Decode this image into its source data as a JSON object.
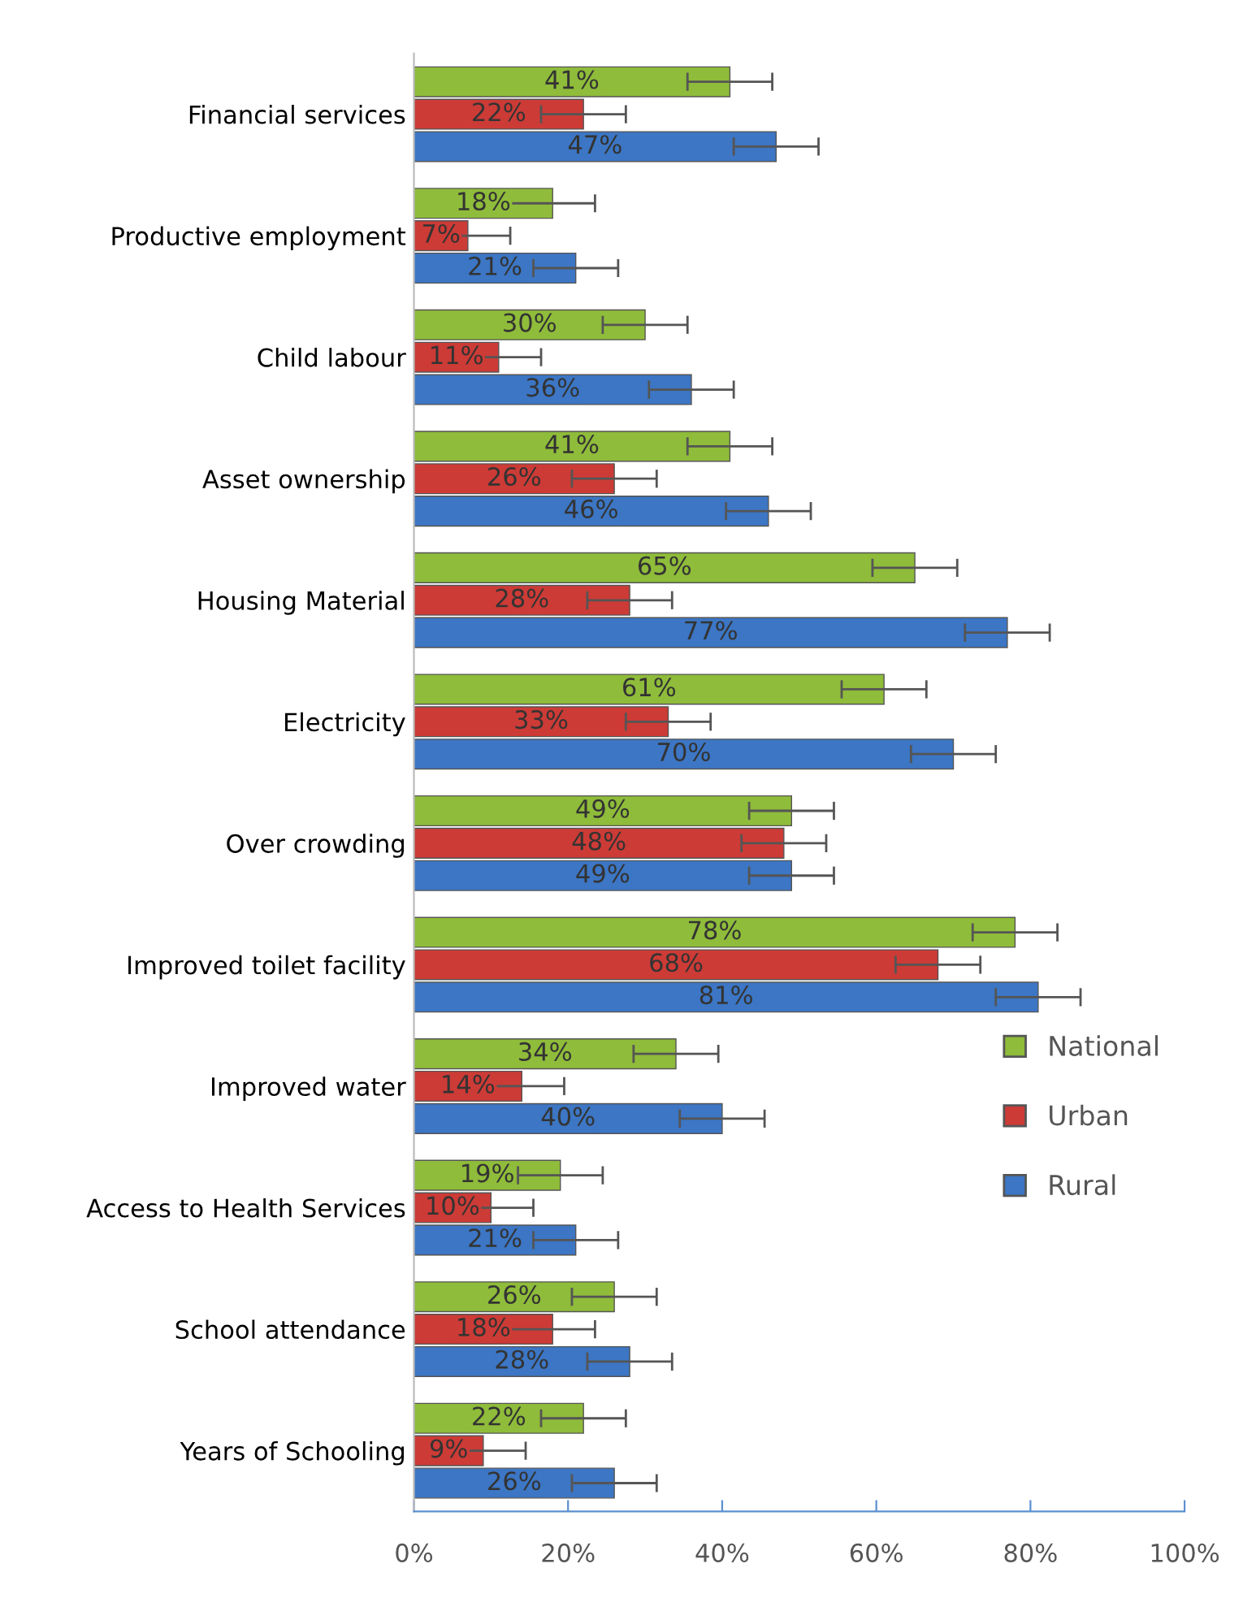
{
  "chart_data": {
    "type": "bar",
    "orientation": "horizontal",
    "categories": [
      "Financial services",
      "Productive employment",
      "Child labour",
      "Asset ownership",
      "Housing Material",
      "Electricity",
      "Over crowding",
      "Improved toilet facility",
      "Improved water",
      "Access to Health Services",
      "School attendance",
      "Years of Schooling"
    ],
    "series": [
      {
        "name": "National",
        "color": "#8fbc3a",
        "values": [
          41,
          18,
          30,
          41,
          65,
          61,
          49,
          78,
          34,
          19,
          26,
          22
        ],
        "errors": [
          5.5,
          5.5,
          5.5,
          5.5,
          5.5,
          5.5,
          5.5,
          5.5,
          5.5,
          5.5,
          5.5,
          5.5
        ],
        "value_labels": [
          "41%",
          "18%",
          "30%",
          "41%",
          "65%",
          "61%",
          "49%",
          "78%",
          "34%",
          "19%",
          "26%",
          "22%"
        ]
      },
      {
        "name": "Urban",
        "color": "#cc3b36",
        "values": [
          22,
          7,
          11,
          26,
          28,
          33,
          48,
          68,
          14,
          10,
          18,
          9
        ],
        "errors": [
          5.5,
          5.5,
          5.5,
          5.5,
          5.5,
          5.5,
          5.5,
          5.5,
          5.5,
          5.5,
          5.5,
          5.5
        ],
        "value_labels": [
          "22%",
          "7%",
          "11%",
          "26%",
          "28%",
          "33%",
          "48%",
          "68%",
          "14%",
          "10%",
          "18%",
          "9%"
        ]
      },
      {
        "name": "Rural",
        "color": "#3c76c4",
        "values": [
          47,
          21,
          36,
          46,
          77,
          70,
          49,
          81,
          40,
          21,
          28,
          26
        ],
        "errors": [
          5.5,
          5.5,
          5.5,
          5.5,
          5.5,
          5.5,
          5.5,
          5.5,
          5.5,
          5.5,
          5.5,
          5.5
        ],
        "value_labels": [
          "47%",
          "21%",
          "36%",
          "46%",
          "77%",
          "70%",
          "49%",
          "81%",
          "40%",
          "21%",
          "28%",
          "26%"
        ]
      }
    ],
    "xlim": [
      0,
      100
    ],
    "xticks": [
      {
        "value": 0,
        "label": "0%"
      },
      {
        "value": 20,
        "label": "20%"
      },
      {
        "value": 40,
        "label": "40%"
      },
      {
        "value": 60,
        "label": "60%"
      },
      {
        "value": 80,
        "label": "80%"
      },
      {
        "value": 100,
        "label": "100%"
      }
    ],
    "grid": false,
    "legend": "right"
  }
}
